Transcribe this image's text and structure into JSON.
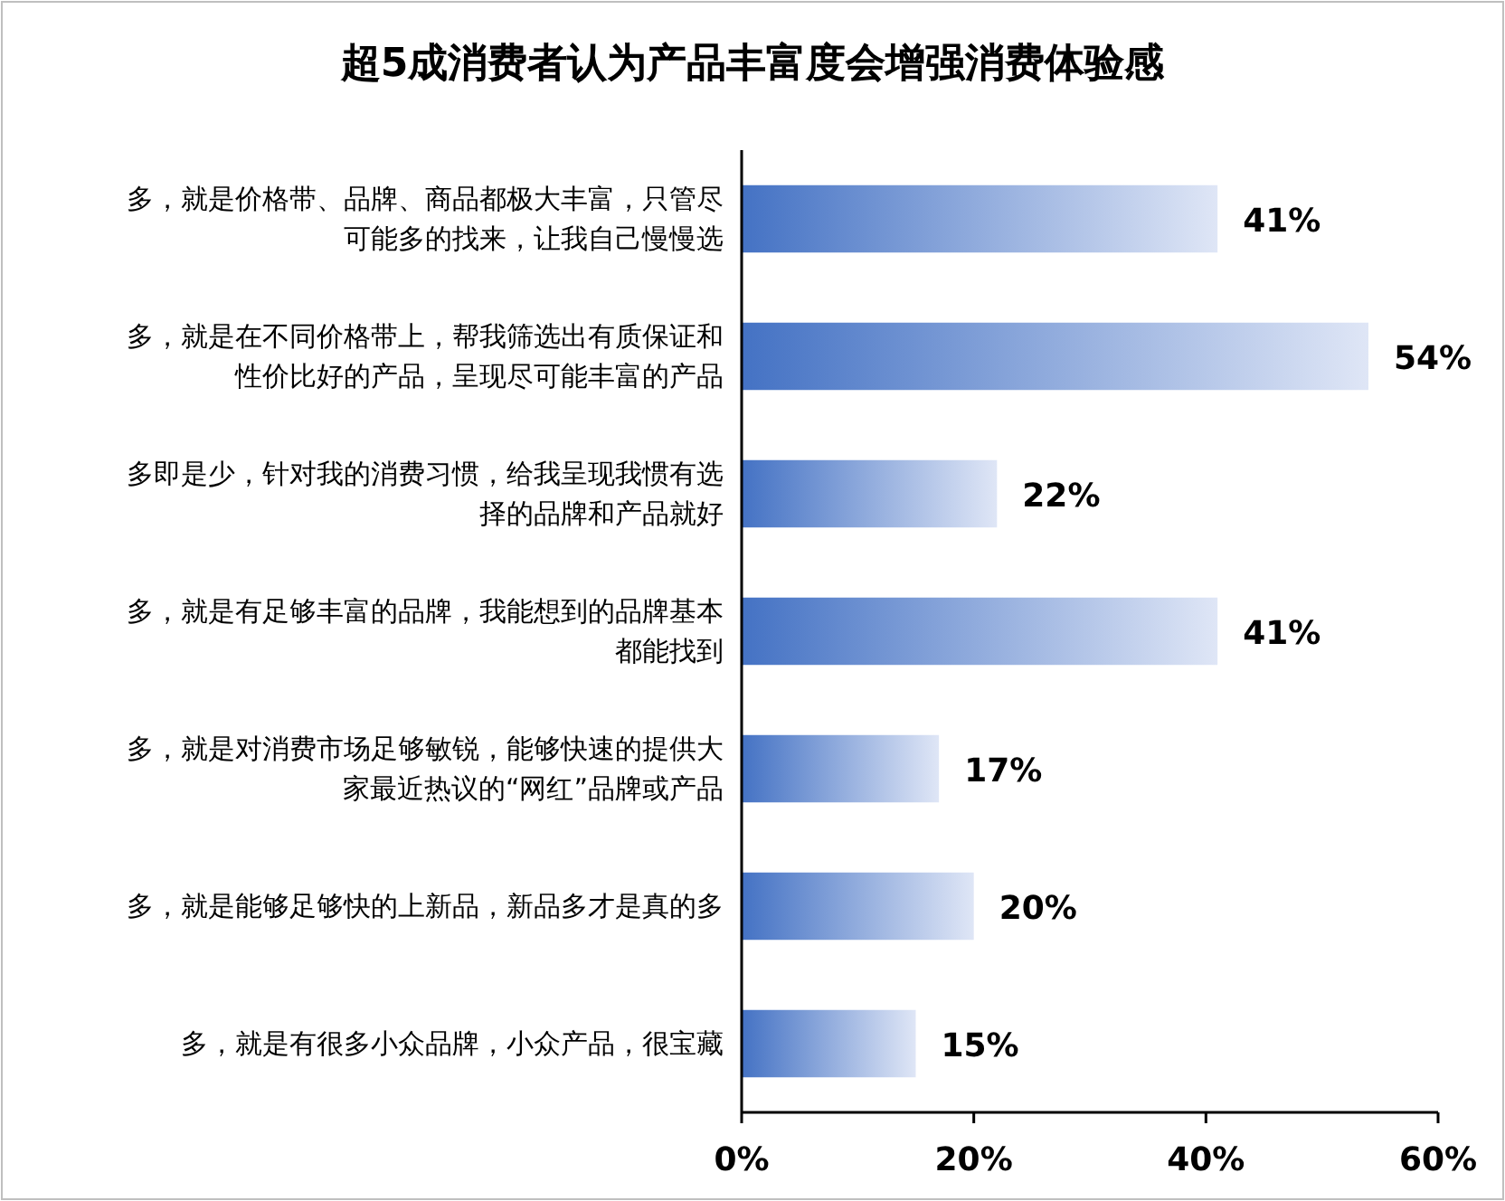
{
  "chart_data": {
    "type": "bar",
    "orientation": "horizontal",
    "title": "超5成消费者认为产品丰富度会增强消费体验感",
    "categories": [
      "多，就是价格带、品牌、商品都极大丰富，只管尽可能多的找来，让我自己慢慢选",
      "多，就是在不同价格带上，帮我筛选出有质保证和性价比好的产品，呈现尽可能丰富的产品",
      "多即是少，针对我的消费习惯，给我呈现我惯有选择的品牌和产品就好",
      "多，就是有足够丰富的品牌，我能想到的品牌基本都能找到",
      "多，就是对消费市场足够敏锐，能够快速的提供大家最近热议的“网红”品牌或产品",
      "多，就是能够足够快的上新品，新品多才是真的多",
      "多，就是有很多小众品牌，小众产品，很宝藏"
    ],
    "values": [
      41,
      54,
      22,
      41,
      17,
      20,
      15
    ],
    "value_labels": [
      "41%",
      "54%",
      "22%",
      "41%",
      "17%",
      "20%",
      "15%"
    ],
    "color": "#4472c4",
    "xlim": [
      0,
      60
    ],
    "xticks": [
      {
        "value": 0,
        "label": "0%"
      },
      {
        "value": 20,
        "label": "20%"
      },
      {
        "value": 40,
        "label": "40%"
      },
      {
        "value": 60,
        "label": "60%"
      }
    ],
    "grid": false
  }
}
